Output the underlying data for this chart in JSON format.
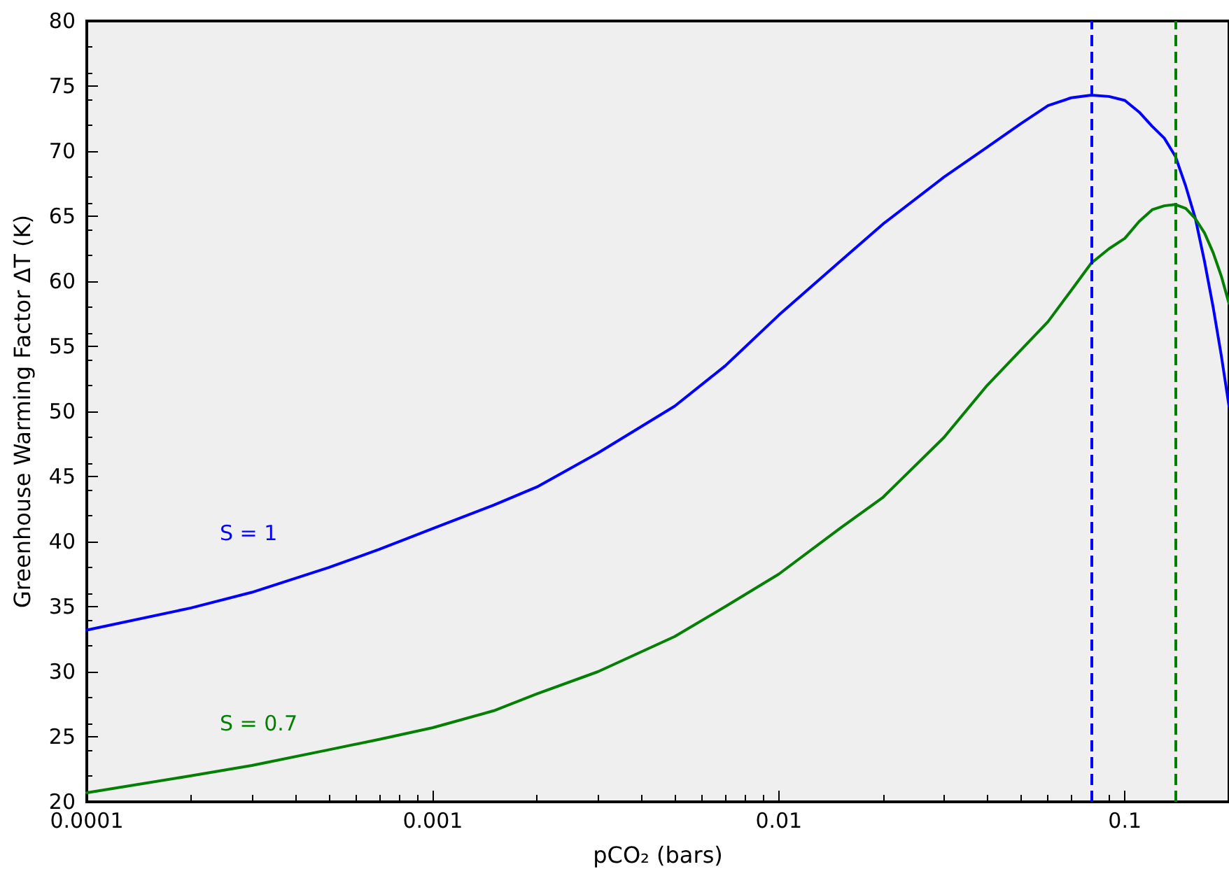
{
  "chart_data": {
    "type": "line",
    "xlabel": "pCO₂ (bars)",
    "ylabel": "Greenhouse Warming Factor ΔT (K)",
    "log": "x",
    "xlim": [
      0.0001,
      0.2
    ],
    "xticks": [
      0.0001,
      0.001,
      0.01,
      0.1
    ],
    "ylim": [
      20,
      80
    ],
    "yticks": [
      20,
      25,
      30,
      35,
      40,
      45,
      50,
      55,
      60,
      65,
      70,
      75,
      80
    ],
    "grid": false,
    "marker": "none",
    "line_style": "solid",
    "x": [
      0.0001,
      0.0002,
      0.0003,
      0.0005,
      0.0007,
      0.001,
      0.0015,
      0.002,
      0.003,
      0.005,
      0.007,
      0.01,
      0.015,
      0.02,
      0.03,
      0.04,
      0.05,
      0.06,
      0.07,
      0.08,
      0.09,
      0.1,
      0.11,
      0.12,
      0.13,
      0.14,
      0.15,
      0.16,
      0.17,
      0.18,
      0.19,
      0.2
    ],
    "series": [
      {
        "color": "#0000ff",
        "values": [
          33.2,
          34.9,
          36.1,
          38.0,
          39.4,
          41,
          42.8,
          44.2,
          46.8,
          50.4,
          53.5,
          57.4,
          61.5,
          64.4,
          68.0,
          70.3,
          72.1,
          73.5,
          74.1,
          74.3,
          74.2,
          73.9,
          73.0,
          71.9,
          71.0,
          69.6,
          67.3,
          64.8,
          61.5,
          58,
          54.3,
          50.4
        ]
      },
      {
        "color": "#007f00",
        "values": [
          20.7,
          22.0,
          22.8,
          24.0,
          24.8,
          25.7,
          27.0,
          28.3,
          30,
          32.7,
          35.0,
          37.5,
          41.0,
          43.4,
          48.0,
          52,
          54.7,
          56.9,
          59.3,
          61.4,
          62.5,
          63.3,
          64.6,
          65.5,
          65.8,
          65.9,
          65.6,
          64.8,
          63.7,
          62.2,
          60.4,
          58.3
        ]
      }
    ],
    "ref_lines": [
      {
        "axis": "x",
        "value": 0.08,
        "color": "#0000ff",
        "line_style": "dashed"
      },
      {
        "axis": "x",
        "value": 0.14,
        "color": "#007f00",
        "line_style": "dashed"
      }
    ],
    "annotations": [
      "S = 1",
      "S = 0.7"
    ]
  }
}
